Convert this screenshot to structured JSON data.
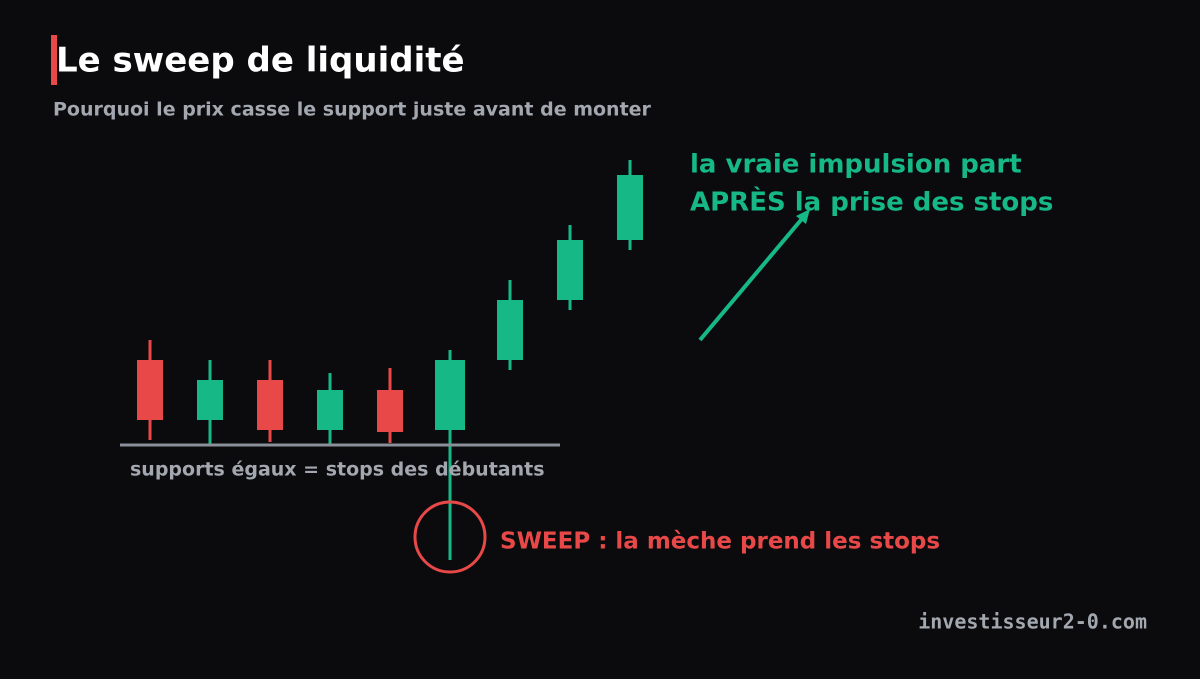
{
  "header": {
    "title": "Le sweep de liquidité",
    "subtitle": "Pourquoi le prix casse le support juste avant de monter"
  },
  "annotations": {
    "support": "supports égaux = stops des débutants",
    "sweep": "SWEEP : la mèche prend les stops",
    "impulse": [
      "la vraie impulsion part",
      "APRÈS la prise des stops"
    ]
  },
  "footer": {
    "brand": "investisseur2-0.com"
  }
}
